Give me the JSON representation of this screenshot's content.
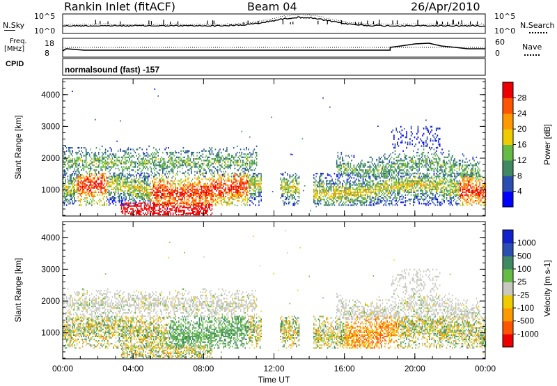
{
  "header": {
    "title": "Rankin Inlet (fitACF)",
    "beam": "Beam 04",
    "date": "26/Apr/2010"
  },
  "noise_panel": {
    "left_label": "N.Sky",
    "right_label": "N.Search",
    "ytick_top": "10^5",
    "ytick_bottom": "10^0"
  },
  "freq_panel": {
    "left_label_line1": "Freq.",
    "left_label_line2": "[MHz]",
    "left_ticks": [
      "18",
      "8"
    ],
    "right_label": "Nave",
    "right_ticks": [
      "60",
      "0"
    ]
  },
  "cpid": {
    "label": "CPID",
    "text": "normalsound (fast) -157"
  },
  "colors": {
    "power": [
      "#0000ff",
      "#2a4fb0",
      "#3f8a62",
      "#66bb44",
      "#eecc00",
      "#ff9900",
      "#ff5500",
      "#ee0000"
    ],
    "velocity": [
      "#ee0000",
      "#ff5500",
      "#ff9900",
      "#eecc00",
      "#c8c8c0",
      "#66bb44",
      "#3f8a62",
      "#2a4fb0",
      "#1122cc"
    ]
  },
  "chart_data": [
    {
      "type": "heatmap",
      "panel": "power",
      "ylabel": "Slant Range [km]",
      "xlabel": "Time UT",
      "x_ticks": [
        "00:00",
        "04:00",
        "08:00",
        "12:00",
        "16:00",
        "20:00",
        "00:00"
      ],
      "y_ticks": [
        "1000",
        "2000",
        "3000",
        "4000"
      ],
      "ylim": [
        180,
        4500
      ],
      "xlim_hours": [
        0,
        24
      ],
      "colorbar": {
        "label": "Power [dB]",
        "ticks": [
          "4",
          "8",
          "12",
          "16",
          "20",
          "24",
          "28"
        ],
        "range": [
          0,
          30
        ]
      }
    },
    {
      "type": "heatmap",
      "panel": "velocity",
      "ylabel": "Slant Range [km]",
      "xlabel": "Time UT",
      "x_ticks": [
        "00:00",
        "04:00",
        "08:00",
        "12:00",
        "16:00",
        "20:00",
        "00:00"
      ],
      "y_ticks": [
        "1000",
        "2000",
        "3000",
        "4000"
      ],
      "ylim": [
        180,
        4500
      ],
      "xlim_hours": [
        0,
        24
      ],
      "colorbar": {
        "label": "Velocity [m s-1]",
        "ticks": [
          "1000",
          "500",
          "100",
          "25",
          "-25",
          "-100",
          "-500",
          "-1000"
        ]
      }
    }
  ]
}
